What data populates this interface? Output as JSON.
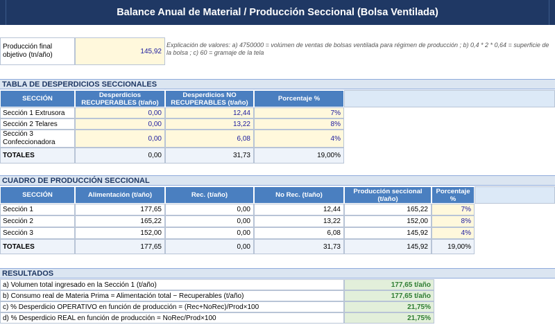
{
  "title": "Balance Anual de Material / Producción Seccional (Bolsa Ventilada)",
  "produccion": {
    "label": "Producción final objetivo  (tn/año)",
    "value": "145,92",
    "note": "Explicación de valores: a) 4750000 = volúmen de ventas de bolsas ventilada para régimen de producción ; b) 0,4 * 2 * 0,64 = superficie de la bolsa ; c) 60 = gramaje de la tela"
  },
  "desperdicios": {
    "heading": "TABLA DE DESPERDICIOS SECCIONALES",
    "headers": [
      "SECCIÓN",
      "Desperdicios RECUPERABLES (t/año)",
      "Desperdicios NO RECUPERABLES (t/año)",
      "Porcentaje %"
    ],
    "rows": [
      {
        "seccion": "Sección 1 Extrusora",
        "rec": "0,00",
        "norec": "12,44",
        "pct": "7%"
      },
      {
        "seccion": "Sección 2 Telares",
        "rec": "0,00",
        "norec": "13,22",
        "pct": "8%"
      },
      {
        "seccion": "Sección 3 Confeccionadora",
        "rec": "0,00",
        "norec": "6,08",
        "pct": "4%"
      }
    ],
    "totals": {
      "label": "TOTALES",
      "rec": "0,00",
      "norec": "31,73",
      "pct": "19,00%"
    }
  },
  "produccion_seccional": {
    "heading": "CUADRO DE PRODUCCIÓN SECCIONAL",
    "headers": [
      "SECCIÓN",
      "Alimentación (t/año)",
      "Rec. (t/año)",
      "No Rec. (t/año)",
      "Producción seccional (t/año)",
      "Porcentaje %"
    ],
    "rows": [
      {
        "seccion": "Sección 1",
        "alim": "177,65",
        "rec": "0,00",
        "norec": "12,44",
        "prod": "165,22",
        "pct": "7%"
      },
      {
        "seccion": "Sección 2",
        "alim": "165,22",
        "rec": "0,00",
        "norec": "13,22",
        "prod": "152,00",
        "pct": "8%"
      },
      {
        "seccion": "Sección 3",
        "alim": "152,00",
        "rec": "0,00",
        "norec": "6,08",
        "prod": "145,92",
        "pct": "4%"
      }
    ],
    "totals": {
      "label": "TOTALES",
      "alim": "177,65",
      "rec": "0,00",
      "norec": "31,73",
      "prod": "145,92",
      "pct": "19,00%"
    }
  },
  "resultados": {
    "heading": "RESULTADOS",
    "rows": [
      {
        "label": "a) Volumen total ingresado en la Sección 1 (t/año)",
        "value": "177,65 t/año"
      },
      {
        "label": "b) Consumo real de Materia Prima  = Alimentación total − Recuperables (t/año)",
        "value": "177,65 t/año"
      },
      {
        "label": "c) % Desperdicio OPERATIVO en función de producción  = (Rec+NoRec)/Prod×100",
        "value": "21,75%"
      },
      {
        "label": "d) % Desperdicio REAL en función de producción  = NoRec/Prod×100",
        "value": "21,75%"
      }
    ]
  }
}
